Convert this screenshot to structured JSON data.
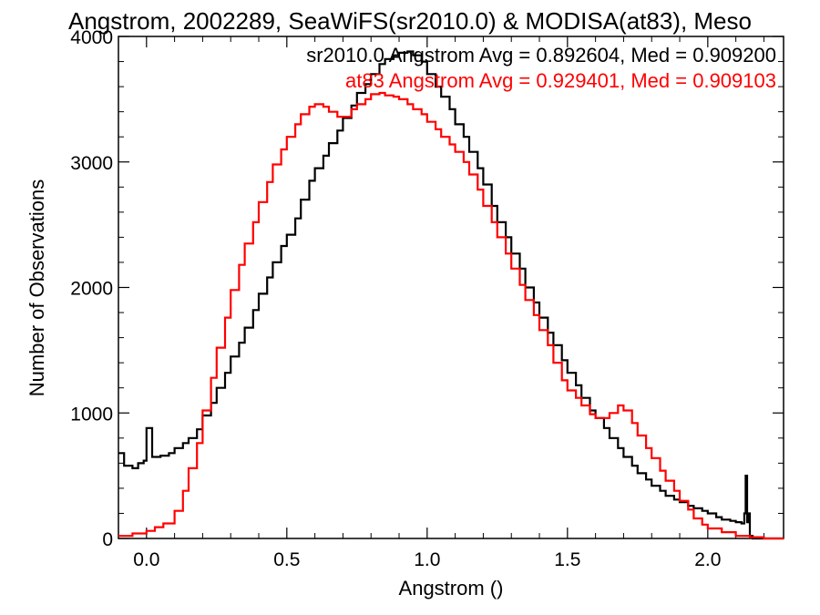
{
  "chart_data": {
    "type": "line",
    "title": "Angstrom, 2002289, SeaWiFS(sr2010.0) & MODISA(at83), Meso",
    "xlabel": "Angstrom ()",
    "ylabel": "Number of Observations",
    "xlim": [
      -0.1,
      2.27
    ],
    "ylim": [
      0,
      4000
    ],
    "x_ticks": [
      0.0,
      0.5,
      1.0,
      1.5,
      2.0
    ],
    "x_tick_labels": [
      "0.0",
      "0.5",
      "1.0",
      "1.5",
      "2.0"
    ],
    "y_ticks": [
      0,
      1000,
      2000,
      3000,
      4000
    ],
    "y_tick_labels": [
      "0",
      "1000",
      "2000",
      "3000",
      "4000"
    ],
    "grid": false,
    "legend_position": "top-right",
    "annotations": [
      {
        "text": "sr2010.0 Angstrom Avg = 0.892604, Med = 0.909200",
        "color": "#000000"
      },
      {
        "text": "at83 Angstrom Avg = 0.929401, Med = 0.909103",
        "color": "#ff0000"
      }
    ],
    "series": [
      {
        "color": "#000000",
        "x": [
          -0.1,
          -0.08,
          -0.05,
          -0.03,
          -0.01,
          0.0,
          0.02,
          0.05,
          0.08,
          0.1,
          0.13,
          0.15,
          0.18,
          0.2,
          0.23,
          0.25,
          0.28,
          0.3,
          0.33,
          0.35,
          0.38,
          0.4,
          0.43,
          0.45,
          0.48,
          0.5,
          0.53,
          0.55,
          0.58,
          0.6,
          0.63,
          0.65,
          0.68,
          0.7,
          0.73,
          0.75,
          0.78,
          0.8,
          0.83,
          0.85,
          0.88,
          0.9,
          0.93,
          0.95,
          0.98,
          1.0,
          1.03,
          1.05,
          1.08,
          1.1,
          1.13,
          1.15,
          1.18,
          1.2,
          1.23,
          1.25,
          1.28,
          1.3,
          1.33,
          1.35,
          1.38,
          1.4,
          1.43,
          1.45,
          1.48,
          1.5,
          1.53,
          1.55,
          1.58,
          1.6,
          1.63,
          1.65,
          1.68,
          1.7,
          1.73,
          1.75,
          1.78,
          1.8,
          1.83,
          1.85,
          1.88,
          1.9,
          1.93,
          1.95,
          1.98,
          2.0,
          2.03,
          2.05,
          2.08,
          2.1,
          2.12,
          2.13,
          2.135,
          2.14,
          2.145,
          2.15,
          2.16,
          2.2,
          2.27
        ],
        "y": [
          680,
          580,
          560,
          600,
          620,
          880,
          650,
          660,
          680,
          720,
          760,
          800,
          870,
          980,
          1080,
          1200,
          1320,
          1450,
          1560,
          1680,
          1820,
          1950,
          2080,
          2200,
          2330,
          2420,
          2550,
          2700,
          2850,
          2950,
          3050,
          3150,
          3250,
          3350,
          3450,
          3550,
          3620,
          3700,
          3780,
          3820,
          3850,
          3870,
          3880,
          3850,
          3800,
          3700,
          3600,
          3520,
          3420,
          3300,
          3200,
          3080,
          2950,
          2820,
          2650,
          2520,
          2400,
          2270,
          2150,
          2000,
          1880,
          1760,
          1640,
          1540,
          1420,
          1320,
          1220,
          1120,
          1020,
          960,
          880,
          800,
          720,
          650,
          580,
          520,
          470,
          420,
          380,
          340,
          310,
          290,
          260,
          240,
          220,
          200,
          170,
          150,
          140,
          130,
          120,
          200,
          500,
          130,
          200,
          20,
          0,
          0,
          0
        ]
      },
      {
        "color": "#ff0000",
        "x": [
          -0.1,
          -0.05,
          0.0,
          0.03,
          0.06,
          0.1,
          0.13,
          0.15,
          0.18,
          0.2,
          0.23,
          0.25,
          0.28,
          0.3,
          0.33,
          0.35,
          0.38,
          0.4,
          0.43,
          0.45,
          0.48,
          0.5,
          0.53,
          0.55,
          0.58,
          0.6,
          0.63,
          0.65,
          0.68,
          0.7,
          0.73,
          0.75,
          0.78,
          0.8,
          0.83,
          0.85,
          0.88,
          0.9,
          0.93,
          0.95,
          0.98,
          1.0,
          1.03,
          1.05,
          1.08,
          1.1,
          1.13,
          1.15,
          1.18,
          1.2,
          1.23,
          1.25,
          1.28,
          1.3,
          1.33,
          1.35,
          1.38,
          1.4,
          1.43,
          1.45,
          1.48,
          1.5,
          1.53,
          1.55,
          1.58,
          1.6,
          1.63,
          1.65,
          1.68,
          1.7,
          1.73,
          1.75,
          1.78,
          1.8,
          1.83,
          1.85,
          1.88,
          1.9,
          1.93,
          1.95,
          1.98,
          2.0,
          2.05,
          2.1,
          2.15,
          2.2,
          2.27
        ],
        "y": [
          20,
          40,
          60,
          90,
          120,
          220,
          380,
          560,
          760,
          1020,
          1280,
          1520,
          1760,
          1980,
          2180,
          2350,
          2520,
          2680,
          2840,
          2980,
          3100,
          3200,
          3300,
          3380,
          3440,
          3460,
          3440,
          3400,
          3360,
          3360,
          3420,
          3460,
          3500,
          3540,
          3550,
          3530,
          3520,
          3500,
          3460,
          3420,
          3380,
          3320,
          3260,
          3200,
          3140,
          3080,
          3000,
          2900,
          2780,
          2650,
          2520,
          2400,
          2270,
          2150,
          2020,
          1900,
          1780,
          1660,
          1540,
          1400,
          1260,
          1180,
          1120,
          1060,
          990,
          960,
          960,
          1000,
          1060,
          1020,
          920,
          820,
          720,
          640,
          540,
          460,
          380,
          300,
          230,
          160,
          110,
          80,
          50,
          20,
          10,
          0,
          0
        ]
      }
    ]
  }
}
